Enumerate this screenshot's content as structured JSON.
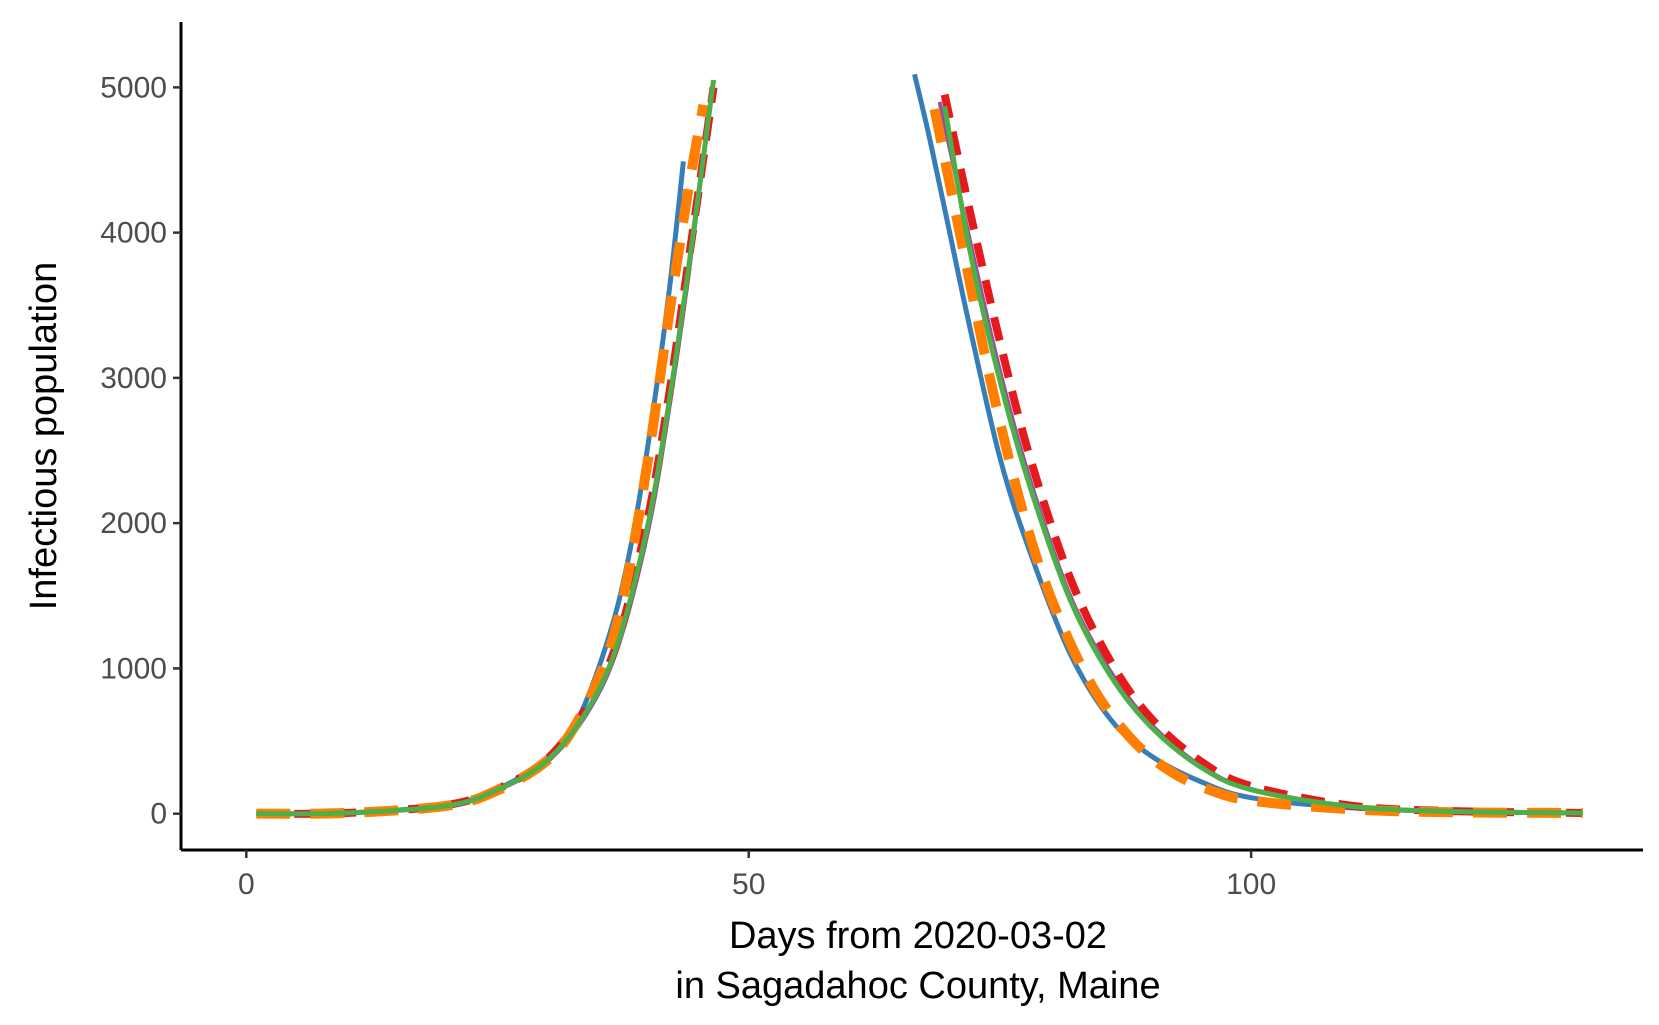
{
  "chart_data": {
    "type": "line",
    "title": "",
    "xlabel_line1": "Days from 2020-03-02",
    "xlabel_line2": "in Sagadahoc County, Maine",
    "ylabel": "Infectious population",
    "xlim": [
      -6.5,
      139
    ],
    "ylim": [
      -250,
      5450
    ],
    "xticks": [
      0,
      50,
      100
    ],
    "yticks": [
      0,
      1000,
      2000,
      3000,
      4000,
      5000
    ],
    "grid": false,
    "legend": "none",
    "series": [
      {
        "color": "#377eb8",
        "dash": "",
        "width": 5,
        "segments": [
          {
            "x": [
              1,
              10,
              20,
              25,
              30,
              33,
              36,
              38,
              40,
              42,
              43.5
            ],
            "y": [
              0,
              5,
              60,
              170,
              380,
              650,
              1200,
              1750,
              2550,
              3550,
              4490
            ]
          },
          {
            "x": [
              66.5,
              68,
              70,
              72,
              75,
              78,
              82,
              86,
              90,
              95,
              100,
              110,
              120,
              133
            ],
            "y": [
              5090,
              4650,
              4000,
              3350,
              2450,
              1800,
              1100,
              650,
              400,
              220,
              110,
              40,
              15,
              5
            ]
          }
        ]
      },
      {
        "color": "#984ea3",
        "dash": "",
        "width": 4,
        "segments": [
          {
            "x": [
              1,
              10,
              20,
              25,
              30,
              34,
              37,
              40,
              42,
              44,
              46.5
            ],
            "y": [
              0,
              5,
              55,
              160,
              360,
              700,
              1150,
              1950,
              2750,
              3700,
              5050
            ]
          },
          {
            "x": [
              69,
              72,
              75,
              78,
              82,
              86,
              90,
              95,
              100,
              110,
              120,
              133
            ],
            "y": [
              4900,
              3950,
              3050,
              2300,
              1500,
              980,
              620,
              330,
              170,
              50,
              15,
              5
            ]
          }
        ]
      },
      {
        "color": "#e41a1c",
        "dash": "24 14",
        "width": 8,
        "segments": [
          {
            "x": [
              1,
              10,
              20,
              25,
              30,
              34,
              37,
              40,
              42,
              44,
              46.5
            ],
            "y": [
              0,
              5,
              60,
              170,
              380,
              750,
              1200,
              2050,
              2850,
              3800,
              5000
            ]
          },
          {
            "x": [
              69.5,
              72,
              75,
              78,
              82,
              86,
              90,
              95,
              100,
              110,
              120,
              133
            ],
            "y": [
              4950,
              4150,
              3250,
              2450,
              1620,
              1050,
              660,
              360,
              190,
              55,
              18,
              5
            ]
          }
        ]
      },
      {
        "color": "#ff7f00",
        "dash": "34 20",
        "width": 10,
        "segments": [
          {
            "x": [
              1,
              10,
              20,
              25,
              30,
              33,
              36,
              38,
              40,
              42,
              44,
              45.5
            ],
            "y": [
              0,
              5,
              55,
              160,
              370,
              640,
              1100,
              1650,
              2450,
              3400,
              4300,
              4880
            ]
          },
          {
            "x": [
              68.5,
              71,
              74,
              77,
              80,
              84,
              88,
              92,
              96,
              100,
              110,
              120,
              133
            ],
            "y": [
              4850,
              4000,
              3000,
              2150,
              1500,
              900,
              520,
              290,
              160,
              90,
              30,
              10,
              5
            ]
          }
        ]
      },
      {
        "color": "#4daf4a",
        "dash": "",
        "width": 5,
        "segments": [
          {
            "x": [
              1,
              10,
              20,
              25,
              30,
              34,
              37,
              40,
              42,
              44,
              46.5
            ],
            "y": [
              0,
              5,
              55,
              165,
              370,
              720,
              1180,
              2000,
              2800,
              3750,
              5050
            ]
          },
          {
            "x": [
              69.5,
              72,
              75,
              78,
              82,
              86,
              90,
              95,
              100,
              110,
              120,
              133
            ],
            "y": [
              4870,
              3880,
              2980,
              2250,
              1470,
              950,
              600,
              320,
              165,
              50,
              15,
              5
            ]
          }
        ]
      }
    ]
  }
}
